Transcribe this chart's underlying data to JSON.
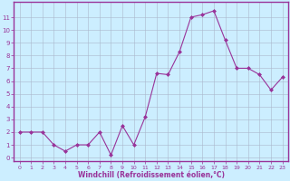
{
  "x": [
    0,
    1,
    2,
    3,
    4,
    5,
    6,
    7,
    8,
    9,
    10,
    11,
    12,
    13,
    14,
    15,
    16,
    17,
    18,
    19,
    20,
    21,
    22,
    23
  ],
  "y": [
    2,
    2,
    2,
    1,
    0.5,
    1,
    1,
    2,
    0.2,
    2.5,
    1,
    3.2,
    6.6,
    6.5,
    8.3,
    11,
    11.2,
    11.5,
    9.2,
    7,
    7,
    6.5,
    5.3,
    6.3
  ],
  "line_color": "#993399",
  "marker": "D",
  "marker_size": 2,
  "bg_color": "#cceeff",
  "grid_color": "#aab8cc",
  "xlabel": "Windchill (Refroidissement éolien,°C)",
  "xlabel_color": "#993399",
  "ylabel_ticks": [
    0,
    1,
    2,
    3,
    4,
    5,
    6,
    7,
    8,
    9,
    10,
    11
  ],
  "xtick_labels": [
    "0",
    "1",
    "2",
    "3",
    "4",
    "5",
    "6",
    "7",
    "8",
    "9",
    "10",
    "11",
    "12",
    "13",
    "14",
    "15",
    "16",
    "17",
    "18",
    "19",
    "20",
    "21",
    "22",
    "23"
  ],
  "xlim": [
    -0.5,
    23.5
  ],
  "ylim": [
    -0.3,
    12.2
  ],
  "tick_label_color": "#993399",
  "axis_color": "#993399",
  "spine_color": "#993399",
  "figsize": [
    3.2,
    2.0
  ],
  "dpi": 100
}
